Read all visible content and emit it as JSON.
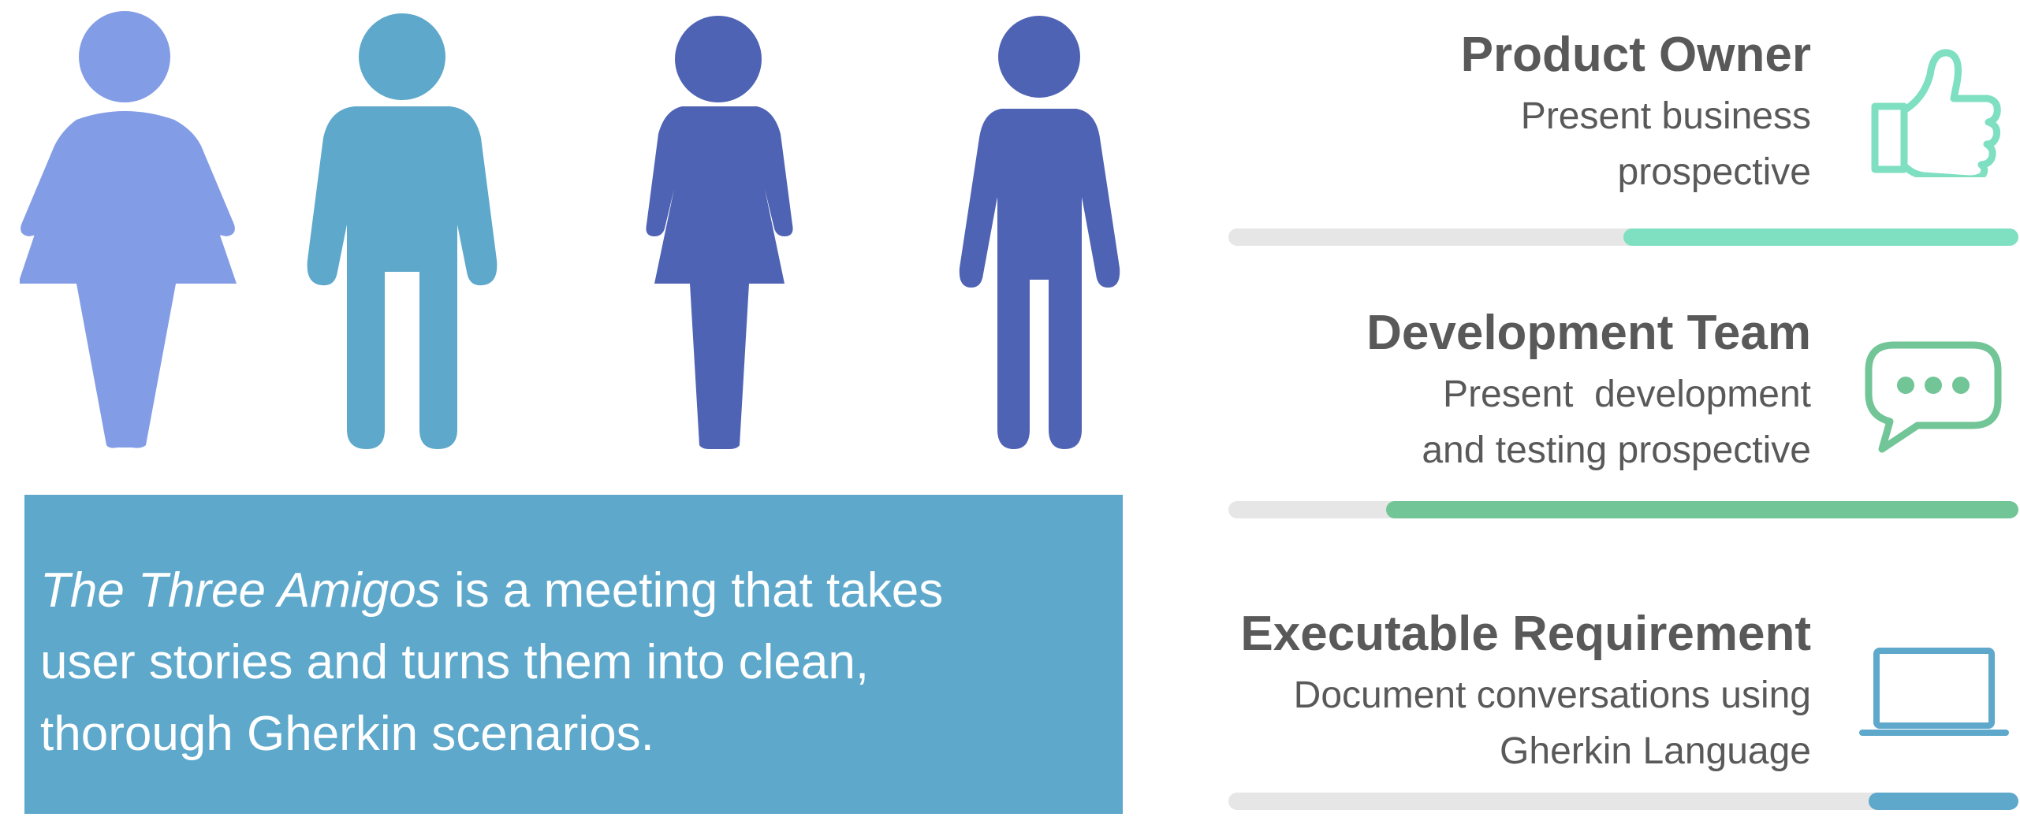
{
  "colors": {
    "figure_1": "#839ce6",
    "figure_2": "#5ea8cb",
    "figure_3": "#4f63b4",
    "figure_4": "#4f63b4",
    "info_box": "#5ea8cb",
    "accent_owner": "#7fdfc1",
    "accent_dev": "#71c596",
    "accent_req": "#5ea8cb",
    "track": "#e6e6e6"
  },
  "info": {
    "emphasis": "The Three Amigos",
    "line1_rest": " is a meeting that takes",
    "line2": "user stories and turns them into clean,",
    "line3": "thorough Gherkin scenarios."
  },
  "roles": [
    {
      "title": "Product Owner",
      "desc_line1": "Present business",
      "desc_line2": "prospective",
      "icon": "thumbs-up-icon",
      "progress": 0.5
    },
    {
      "title": "Development Team",
      "desc_line1": "Present  development",
      "desc_line2": "and testing prospective",
      "icon": "chat-bubble-icon",
      "progress": 0.8
    },
    {
      "title": "Executable Requirement",
      "desc_line1": "Document conversations using",
      "desc_line2": "Gherkin Language",
      "icon": "laptop-icon",
      "progress": 0.19
    }
  ]
}
